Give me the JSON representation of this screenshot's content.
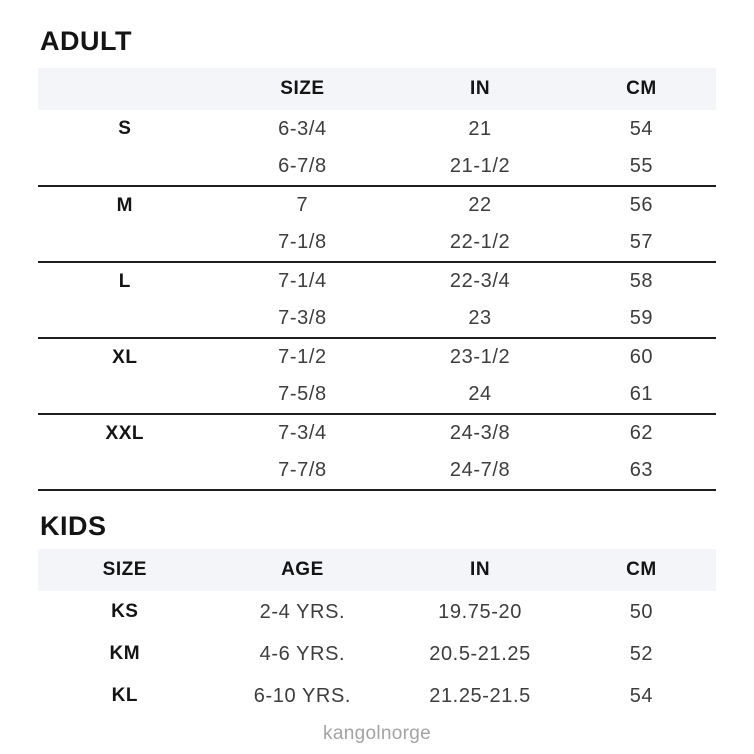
{
  "adult": {
    "title": "ADULT",
    "columns": [
      "",
      "SIZE",
      "IN",
      "CM"
    ],
    "groups": [
      {
        "label": "S",
        "rows": [
          [
            "6-3/4",
            "21",
            "54"
          ],
          [
            "6-7/8",
            "21-1/2",
            "55"
          ]
        ]
      },
      {
        "label": "M",
        "rows": [
          [
            "7",
            "22",
            "56"
          ],
          [
            "7-1/8",
            "22-1/2",
            "57"
          ]
        ]
      },
      {
        "label": "L",
        "rows": [
          [
            "7-1/4",
            "22-3/4",
            "58"
          ],
          [
            "7-3/8",
            "23",
            "59"
          ]
        ]
      },
      {
        "label": "XL",
        "rows": [
          [
            "7-1/2",
            "23-1/2",
            "60"
          ],
          [
            "7-5/8",
            "24",
            "61"
          ]
        ]
      },
      {
        "label": "XXL",
        "rows": [
          [
            "7-3/4",
            "24-3/8",
            "62"
          ],
          [
            "7-7/8",
            "24-7/8",
            "63"
          ]
        ]
      }
    ]
  },
  "kids": {
    "title": "KIDS",
    "columns": [
      "SIZE",
      "AGE",
      "IN",
      "CM"
    ],
    "rows": [
      {
        "size": "KS",
        "age": "2-4 YRS.",
        "in": "19.75-20",
        "cm": "50"
      },
      {
        "size": "KM",
        "age": "4-6 YRS.",
        "in": "20.5-21.25",
        "cm": "52"
      },
      {
        "size": "KL",
        "age": "6-10 YRS.",
        "in": "21.25-21.5",
        "cm": "54"
      }
    ]
  },
  "footer": {
    "brand": "kangolnorge"
  },
  "colors": {
    "header_band": "#f3f5f9",
    "heading_text": "#141414",
    "data_text": "#3d3d3d",
    "separator_line": "#1f1f1f",
    "footer_text": "#a3a3a3"
  }
}
